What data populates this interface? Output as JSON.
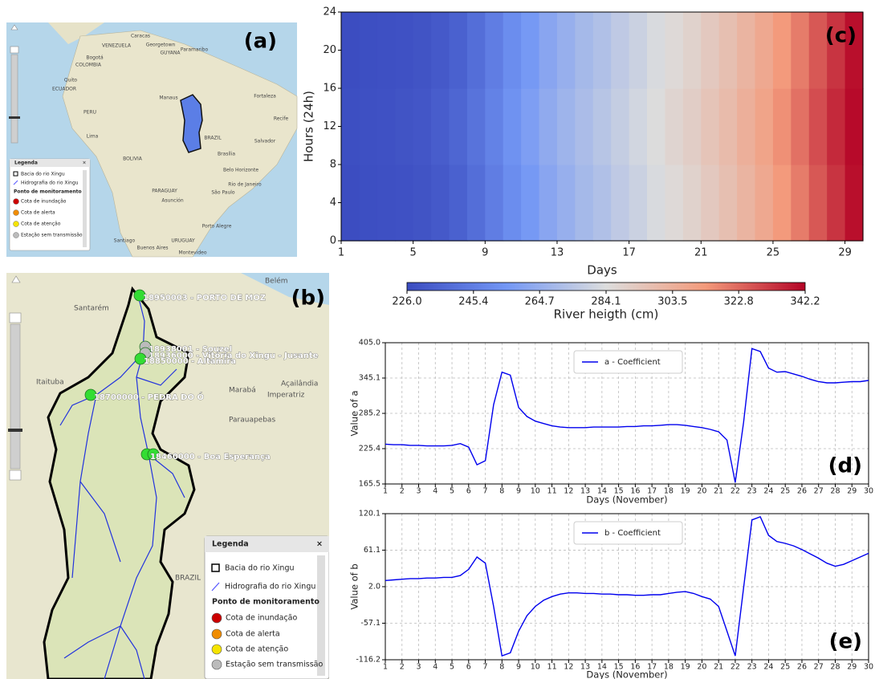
{
  "chart_data": [
    {
      "type": "heatmap",
      "panel_label": "(c)",
      "x_label": "Days",
      "y_label": "Hours (24h)",
      "x": [
        1,
        2,
        3,
        4,
        5,
        6,
        7,
        8,
        9,
        10,
        11,
        12,
        13,
        14,
        15,
        16,
        17,
        18,
        19,
        20,
        21,
        22,
        23,
        24,
        25,
        26,
        27,
        28,
        29
      ],
      "z": [
        [
          226.5,
          227,
          227.5,
          228,
          229,
          231,
          234,
          239,
          245,
          251,
          256,
          261,
          265,
          269,
          272,
          276,
          279,
          283,
          286,
          289,
          293,
          297,
          302,
          307,
          313,
          319,
          326,
          333,
          340
        ],
        [
          227,
          227.5,
          228,
          229,
          230,
          232.5,
          236,
          241,
          247,
          253,
          258,
          263,
          267,
          270.5,
          274,
          277.5,
          281,
          284.5,
          288,
          291,
          295,
          299,
          304,
          309,
          315,
          321,
          328,
          335,
          341
        ],
        [
          226.5,
          227,
          227.5,
          228,
          229,
          231,
          234,
          239,
          245,
          251,
          256,
          261,
          265,
          269,
          272,
          276,
          279,
          283,
          286,
          289,
          293,
          297,
          302,
          307,
          313,
          319,
          326,
          333,
          340
        ]
      ],
      "xlim": [
        1,
        30
      ],
      "ylim": [
        0,
        24
      ],
      "xticks": [
        1,
        5,
        9,
        13,
        17,
        21,
        25,
        29
      ],
      "yticks": [
        0,
        4,
        8,
        12,
        16,
        20,
        24
      ],
      "colorbar": {
        "label": "River heigth (cm)",
        "clim": [
          226.0,
          342.2
        ],
        "ticks": [
          {
            "value": 226,
            "label": "226.0"
          },
          245.4,
          264.7,
          284.1,
          303.5,
          322.8,
          342.2
        ]
      }
    },
    {
      "type": "line",
      "panel_label": "(d)",
      "x_label": "Days (November)",
      "y_label": "Value of a",
      "x": [
        1,
        1.5,
        2,
        2.5,
        3,
        3.5,
        4,
        4.5,
        5,
        5.5,
        6,
        6.5,
        7,
        7.5,
        8,
        8.5,
        9,
        9.5,
        10,
        10.5,
        11,
        11.5,
        12,
        12.5,
        13,
        13.5,
        14,
        14.5,
        15,
        15.5,
        16,
        16.5,
        17,
        17.5,
        18,
        18.5,
        19,
        19.5,
        20,
        20.5,
        21,
        21.5,
        22,
        22.5,
        23,
        23.5,
        24,
        24.5,
        25,
        25.5,
        26,
        26.5,
        27,
        27.5,
        28,
        28.5,
        29,
        29.5,
        30
      ],
      "series": [
        {
          "name": "a - Coefficient",
          "color": "#0000ee",
          "values": [
            233,
            232,
            232,
            231,
            231,
            230,
            230,
            230,
            231,
            234,
            228,
            198,
            205,
            300,
            355,
            350,
            295,
            280,
            272,
            268,
            264,
            262,
            261,
            261,
            261,
            262,
            262,
            262,
            262,
            263,
            263,
            264,
            264,
            265,
            266,
            266,
            265,
            263,
            261,
            258,
            254,
            240,
            168,
            270,
            395,
            390,
            362,
            355,
            356,
            352,
            348,
            343,
            339,
            337,
            337,
            338,
            339,
            339,
            341
          ]
        }
      ],
      "xlim": [
        1,
        30
      ],
      "ylim": [
        165.5,
        405.0
      ],
      "xticks": [
        1,
        2,
        3,
        4,
        5,
        6,
        7,
        8,
        9,
        10,
        11,
        12,
        13,
        14,
        15,
        16,
        17,
        18,
        19,
        20,
        21,
        22,
        23,
        24,
        25,
        26,
        27,
        28,
        29,
        30
      ],
      "yticks": [
        165.5,
        225.4,
        285.2,
        345.1,
        {
          "value": 405,
          "label": "405.0"
        }
      ],
      "grid": true
    },
    {
      "type": "line",
      "panel_label": "(e)",
      "x_label": "Days (November)",
      "y_label": "Value of b",
      "x": [
        1,
        1.5,
        2,
        2.5,
        3,
        3.5,
        4,
        4.5,
        5,
        5.5,
        6,
        6.5,
        7,
        7.5,
        8,
        8.5,
        9,
        9.5,
        10,
        10.5,
        11,
        11.5,
        12,
        12.5,
        13,
        13.5,
        14,
        14.5,
        15,
        15.5,
        16,
        16.5,
        17,
        17.5,
        18,
        18.5,
        19,
        19.5,
        20,
        20.5,
        21,
        21.5,
        22,
        22.5,
        23,
        23.5,
        24,
        24.5,
        25,
        25.5,
        26,
        26.5,
        27,
        27.5,
        28,
        28.5,
        29,
        29.5,
        30
      ],
      "series": [
        {
          "name": "b - Coefficient",
          "color": "#0000ee",
          "values": [
            12,
            13,
            14,
            15,
            15,
            16,
            16,
            17,
            17,
            20,
            30,
            50,
            40,
            -30,
            -110,
            -105,
            -70,
            -45,
            -30,
            -20,
            -14,
            -10,
            -8,
            -8,
            -9,
            -9,
            -10,
            -10,
            -11,
            -11,
            -12,
            -12,
            -11,
            -11,
            -9,
            -7,
            -6,
            -9,
            -14,
            -18,
            -30,
            -70,
            -110,
            0,
            110,
            115,
            85,
            75,
            72,
            68,
            62,
            55,
            48,
            40,
            35,
            38,
            44,
            50,
            56
          ]
        }
      ],
      "xlim": [
        1,
        30
      ],
      "ylim": [
        -116.2,
        120.1
      ],
      "xticks": [
        1,
        2,
        3,
        4,
        5,
        6,
        7,
        8,
        9,
        10,
        11,
        12,
        13,
        14,
        15,
        16,
        17,
        18,
        19,
        20,
        21,
        22,
        23,
        24,
        25,
        26,
        27,
        28,
        29,
        30
      ],
      "yticks": [
        -116.2,
        -57.1,
        {
          "value": 2,
          "label": "2.0"
        },
        61.1,
        120.1
      ],
      "grid": true
    }
  ],
  "map_a": {
    "panel_label": "(a)",
    "places": [
      "Caracas",
      "VENEZUELA",
      "Georgetown",
      "Paramaribo",
      "Bogotá",
      "COLOMBIA",
      "GUYANA",
      "Quito",
      "ECUADOR",
      "Manaus",
      "Fortaleza",
      "PERU",
      "Recife",
      "Lima",
      "BRAZIL",
      "Salvador",
      "BOLIVIA",
      "Brasília",
      "Belo Horizonte",
      "Rio de Janeiro",
      "PARAGUAY",
      "São Paulo",
      "Asunción",
      "Porto Alegre",
      "Santiago",
      "URUGUAY",
      "Buenos Aires",
      "Montevideo"
    ]
  },
  "map_b": {
    "panel_label": "(b)",
    "places": [
      "Belém",
      "Santarém",
      "Itaituba",
      "Açailândia",
      "Marabá",
      "Imperatriz",
      "Parauapebas",
      "BRAZIL"
    ],
    "stations": [
      "18950003 - PORTO DE MOZ",
      "18938001 - Souzel",
      "18936000 - Vitória do Xingu - Jusante",
      "18850000 - Altamira",
      "18700000 - PEDRA DO Ó",
      "18460000 - Boa Esperança"
    ]
  },
  "legend": {
    "title": "Legenda",
    "close": "×",
    "items": [
      "Bacia do rio Xingu",
      "Hidrografia do rio Xingu"
    ],
    "section": "Ponto de monitoramento",
    "points": [
      "Cota de inundação",
      "Cota de alerta",
      "Cota de atenção",
      "Estação sem transmissão"
    ]
  }
}
